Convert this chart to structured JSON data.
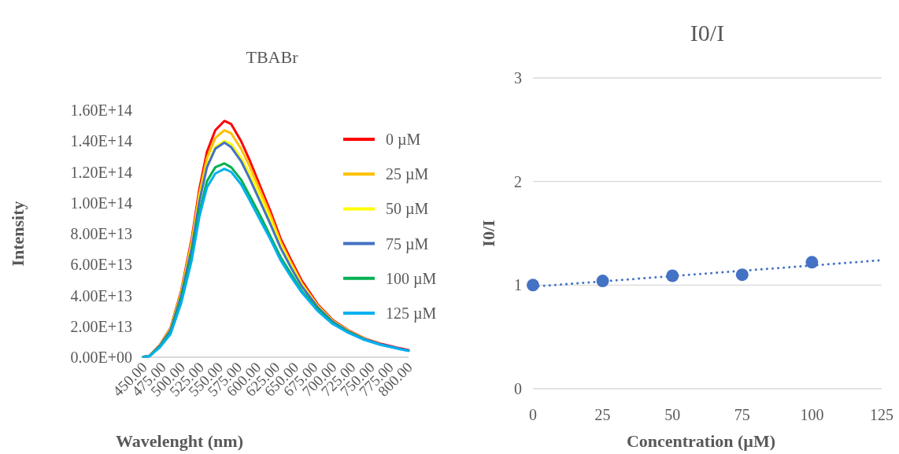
{
  "chart_data": [
    {
      "type": "line",
      "title": "TBABr",
      "xlabel": "Wavelenght (nm)",
      "ylabel": "Intensity",
      "xlim": [
        450,
        800
      ],
      "xticks": [
        {
          "value": 450,
          "label": "450.00"
        },
        {
          "value": 475,
          "label": "475.00"
        },
        {
          "value": 500,
          "label": "500.00"
        },
        {
          "value": 525,
          "label": "525.00"
        },
        {
          "value": 550,
          "label": "550.00"
        },
        {
          "value": 575,
          "label": "575.00"
        },
        {
          "value": 600,
          "label": "600.00"
        },
        {
          "value": 625,
          "label": "625.00"
        },
        {
          "value": 650,
          "label": "650.00"
        },
        {
          "value": 675,
          "label": "675.00"
        },
        {
          "value": 700,
          "label": "700.00"
        },
        {
          "value": 725,
          "label": "725.00"
        },
        {
          "value": 750,
          "label": "750.00"
        },
        {
          "value": 775,
          "label": "775.00"
        },
        {
          "value": 800,
          "label": "800.00"
        }
      ],
      "ylim": [
        0,
        160000000000000.0
      ],
      "yticks": [
        {
          "value": 0,
          "label": "0.00E+00"
        },
        {
          "value": 20000000000000.0,
          "label": "2.00E+13"
        },
        {
          "value": 40000000000000.0,
          "label": "4.00E+13"
        },
        {
          "value": 60000000000000.0,
          "label": "6.00E+13"
        },
        {
          "value": 80000000000000.0,
          "label": "8.00E+13"
        },
        {
          "value": 100000000000000.0,
          "label": "1.00E+14"
        },
        {
          "value": 120000000000000.0,
          "label": "1.20E+14"
        },
        {
          "value": 140000000000000.0,
          "label": "1.40E+14"
        },
        {
          "value": 160000000000000.0,
          "label": "1.60E+14"
        }
      ],
      "grid": false,
      "legend": "right",
      "line_style": "solid",
      "x": [
        450,
        458,
        472,
        486,
        500,
        514,
        524,
        534,
        545,
        557,
        566,
        579,
        590,
        604,
        617,
        631,
        645,
        659,
        680,
        700,
        721,
        742,
        763,
        784,
        800
      ],
      "series": [
        {
          "name": "0 µM",
          "color": "#ff0000",
          "values": [
            200000000000.0,
            700000000000.0,
            8000000000000.0,
            19000000000000.0,
            43000000000000.0,
            77000000000000.0,
            109000000000000.0,
            133000000000000.0,
            147000000000000.0,
            153000000000000.0,
            151000000000000.0,
            140000000000000.0,
            128000000000000.0,
            111000000000000.0,
            95500000000000.0,
            77000000000000.0,
            63000000000000.0,
            49600000000000.0,
            34300000000000.0,
            24100000000000.0,
            17300000000000.0,
            12200000000000.0,
            8800000000000.0,
            6300000000000.0,
            4600000000000.0
          ]
        },
        {
          "name": "25 µM",
          "color": "#ffc000",
          "values": [
            200000000000.0,
            700000000000.0,
            7800000000000.0,
            18500000000000.0,
            42000000000000.0,
            75000000000000.0,
            106000000000000.0,
            129000000000000.0,
            142000000000000.0,
            147000000000000.0,
            145000000000000.0,
            135000000000000.0,
            124000000000000.0,
            108000000000000.0,
            93000000000000.0,
            75000000000000.0,
            61000000000000.0,
            48000000000000.0,
            33500000000000.0,
            23600000000000.0,
            17000000000000.0,
            12000000000000.0,
            8600000000000.0,
            null,
            null
          ]
        },
        {
          "name": "50 µM",
          "color": "#ffff00",
          "values": [
            null,
            null,
            7600000000000.0,
            18000000000000.0,
            41000000000000.0,
            73000000000000.0,
            103000000000000.0,
            124000000000000.0,
            136000000000000.0,
            140000000000000.0,
            138000000000000.0,
            129000000000000.0,
            119000000000000.0,
            104000000000000.0,
            90000000000000.0,
            73000000000000.0,
            59500000000000.0,
            47000000000000.0,
            33000000000000.0,
            23300000000000.0,
            16800000000000.0,
            null,
            null,
            null,
            null
          ]
        },
        {
          "name": "75 µM",
          "color": "#4472c4",
          "values": [
            200000000000.0,
            700000000000.0,
            7500000000000.0,
            17500000000000.0,
            40000000000000.0,
            71000000000000.0,
            101000000000000.0,
            123000000000000.0,
            135000000000000.0,
            139000000000000.0,
            136000000000000.0,
            127000000000000.0,
            116000000000000.0,
            101000000000000.0,
            87000000000000.0,
            71000000000000.0,
            58000000000000.0,
            46000000000000.0,
            32500000000000.0,
            23000000000000.0,
            16600000000000.0,
            11700000000000.0,
            8400000000000.0,
            6000000000000.0,
            4300000000000.0
          ]
        },
        {
          "name": "100 µM",
          "color": "#00b050",
          "values": [
            200000000000.0,
            600000000000.0,
            7000000000000.0,
            16000000000000.0,
            37000000000000.0,
            66000000000000.0,
            94000000000000.0,
            114000000000000.0,
            123000000000000.0,
            125500000000000.0,
            123000000000000.0,
            115000000000000.0,
            105000000000000.0,
            92000000000000.0,
            79000000000000.0,
            65000000000000.0,
            54000000000000.0,
            43000000000000.0,
            31000000000000.0,
            22000000000000.0,
            16000000000000.0,
            11400000000000.0,
            null,
            null,
            null
          ]
        },
        {
          "name": "125 µM",
          "color": "#00b0f0",
          "values": [
            200000000000.0,
            600000000000.0,
            6500000000000.0,
            15000000000000.0,
            35000000000000.0,
            63000000000000.0,
            91000000000000.0,
            110000000000000.0,
            119000000000000.0,
            122000000000000.0,
            120000000000000.0,
            112000000000000.0,
            102000000000000.0,
            89000000000000.0,
            77000000000000.0,
            63000000000000.0,
            52000000000000.0,
            42000000000000.0,
            30000000000000.0,
            21500000000000.0,
            15700000000000.0,
            11200000000000.0,
            8000000000000.0,
            5700000000000.0,
            4100000000000.0
          ]
        }
      ]
    },
    {
      "type": "scatter",
      "title": "I0/I",
      "xlabel": "Concentration (µM)",
      "ylabel": "I0/I",
      "xlim": [
        0,
        125
      ],
      "xticks": [
        0,
        25,
        50,
        75,
        100,
        125
      ],
      "ylim": [
        0,
        3
      ],
      "yticks": [
        0,
        1,
        2,
        3
      ],
      "grid": "y",
      "legend": false,
      "series": [
        {
          "marker": "circle",
          "color": "#4472c4",
          "x": [
            0,
            25,
            50,
            75,
            100
          ],
          "values": [
            1.0,
            1.04,
            1.09,
            1.1,
            1.22
          ]
        },
        {
          "type": "line",
          "color": "#4472c4",
          "line_style": "dotted",
          "x": [
            0,
            125
          ],
          "values": [
            0.985,
            1.24
          ]
        }
      ]
    }
  ]
}
